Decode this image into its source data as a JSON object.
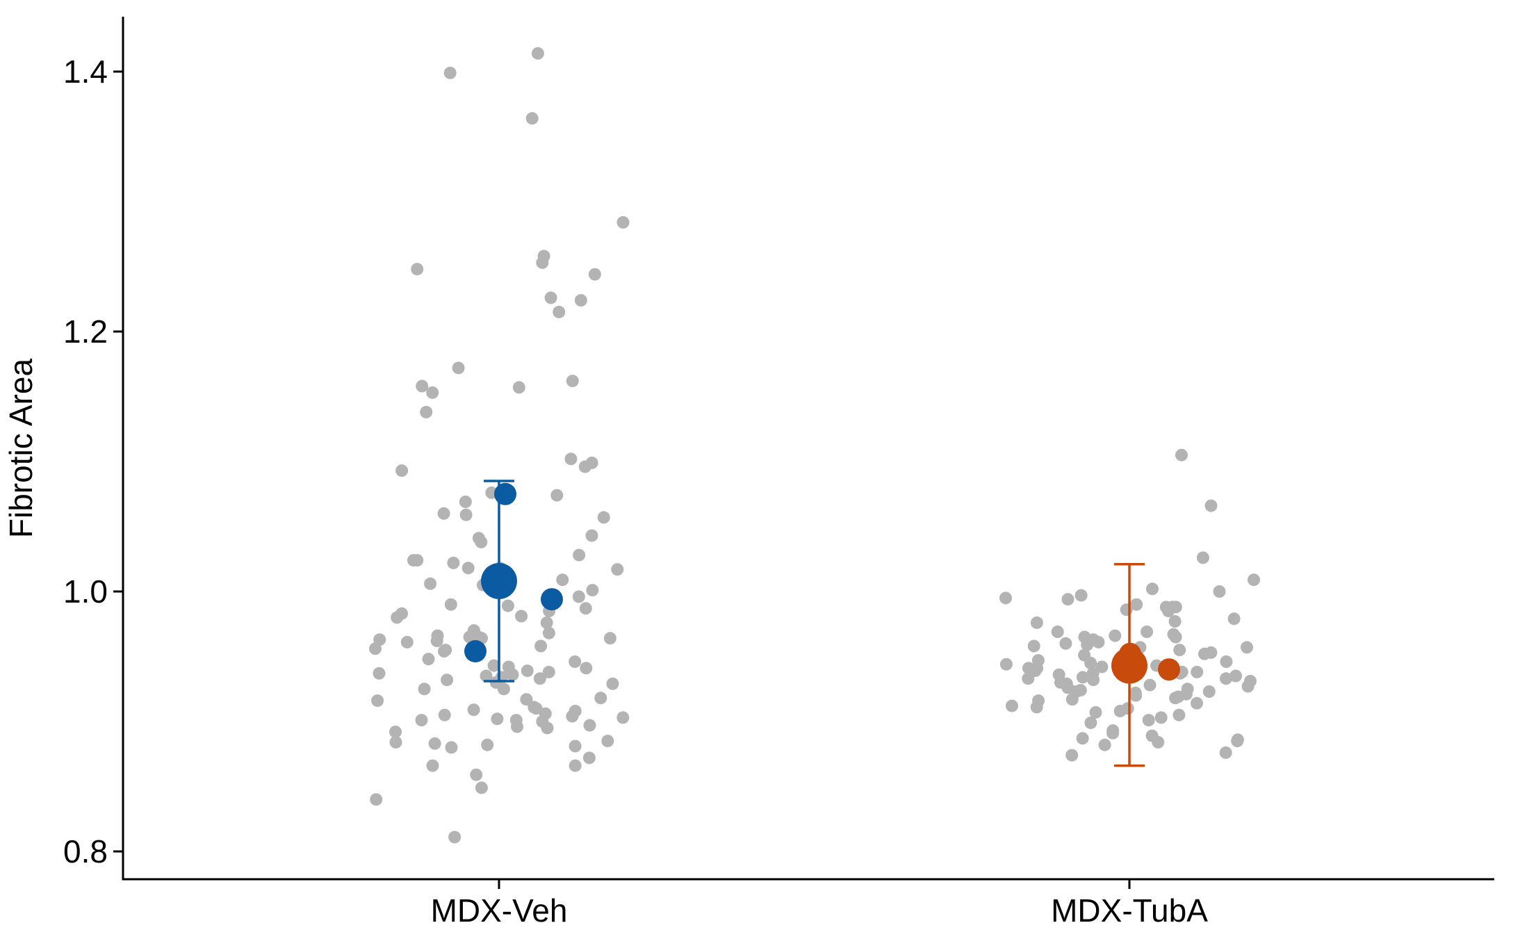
{
  "chart_data": {
    "type": "scatter",
    "title": "",
    "xlabel": "",
    "ylabel": "Fibrotic Area",
    "ylim": [
      0.787,
      1.45
    ],
    "yticks": [
      0.8,
      1.0,
      1.2,
      1.4
    ],
    "ytick_labels": [
      "0.8",
      "1.0",
      "1.2",
      "1.4"
    ],
    "categories": [
      "MDX-Veh",
      "MDX-TubA"
    ],
    "grid": false,
    "legend": "none",
    "colors": {
      "points": "#b3b3b3",
      "MDX-Veh": "#0a5ba1",
      "MDX-TubA": "#c84b0b",
      "axis": "#000000"
    },
    "groups": [
      {
        "name": "MDX-Veh",
        "points": [
          1.414,
          1.399,
          1.364,
          1.284,
          1.258,
          1.253,
          1.248,
          1.244,
          1.226,
          1.224,
          1.215,
          1.172,
          1.162,
          1.158,
          1.157,
          1.153,
          1.138,
          1.102,
          1.099,
          1.096,
          1.093,
          1.076,
          1.074,
          1.069,
          1.06,
          1.059,
          1.057,
          1.043,
          1.041,
          1.038,
          1.028,
          1.024,
          1.024,
          1.022,
          1.018,
          1.018,
          1.017,
          1.015,
          1.009,
          1.006,
          1.005,
          1.001,
          0.996,
          0.99,
          0.989,
          0.987,
          0.985,
          0.983,
          0.981,
          0.98,
          0.976,
          0.97,
          0.968,
          0.966,
          0.965,
          0.965,
          0.965,
          0.964,
          0.964,
          0.963,
          0.962,
          0.961,
          0.958,
          0.956,
          0.955,
          0.954,
          0.953,
          0.948,
          0.946,
          0.943,
          0.942,
          0.941,
          0.939,
          0.938,
          0.937,
          0.936,
          0.935,
          0.934,
          0.933,
          0.932,
          0.93,
          0.929,
          0.925,
          0.925,
          0.918,
          0.917,
          0.916,
          0.911,
          0.91,
          0.909,
          0.908,
          0.906,
          0.905,
          0.904,
          0.903,
          0.902,
          0.901,
          0.901,
          0.9,
          0.897,
          0.896,
          0.895,
          0.892,
          0.885,
          0.884,
          0.883,
          0.882,
          0.881,
          0.88,
          0.872,
          0.866,
          0.866,
          0.859,
          0.849,
          0.84,
          0.811
        ],
        "replicate_means": [
          1.075,
          0.994,
          0.954
        ],
        "mean": 1.008,
        "error_bar": [
          0.931,
          1.085
        ]
      },
      {
        "name": "MDX-TubA",
        "points": [
          1.105,
          1.066,
          1.026,
          1.009,
          1.002,
          1.0,
          0.997,
          0.995,
          0.994,
          0.99,
          0.988,
          0.988,
          0.988,
          0.986,
          0.985,
          0.979,
          0.977,
          0.976,
          0.969,
          0.969,
          0.967,
          0.966,
          0.965,
          0.965,
          0.963,
          0.961,
          0.96,
          0.959,
          0.958,
          0.957,
          0.957,
          0.955,
          0.954,
          0.953,
          0.952,
          0.951,
          0.95,
          0.948,
          0.947,
          0.946,
          0.945,
          0.944,
          0.943,
          0.942,
          0.941,
          0.941,
          0.94,
          0.939,
          0.938,
          0.938,
          0.937,
          0.937,
          0.936,
          0.936,
          0.935,
          0.934,
          0.933,
          0.933,
          0.932,
          0.931,
          0.93,
          0.929,
          0.928,
          0.927,
          0.926,
          0.925,
          0.924,
          0.923,
          0.923,
          0.922,
          0.921,
          0.92,
          0.919,
          0.918,
          0.917,
          0.916,
          0.914,
          0.912,
          0.911,
          0.91,
          0.908,
          0.907,
          0.905,
          0.903,
          0.901,
          0.899,
          0.893,
          0.891,
          0.889,
          0.887,
          0.886,
          0.885,
          0.884,
          0.882,
          0.876,
          0.874
        ],
        "replicate_means": [
          0.952,
          0.946,
          0.94
        ],
        "mean": 0.943,
        "error_bar": [
          0.866,
          1.021
        ]
      }
    ]
  }
}
